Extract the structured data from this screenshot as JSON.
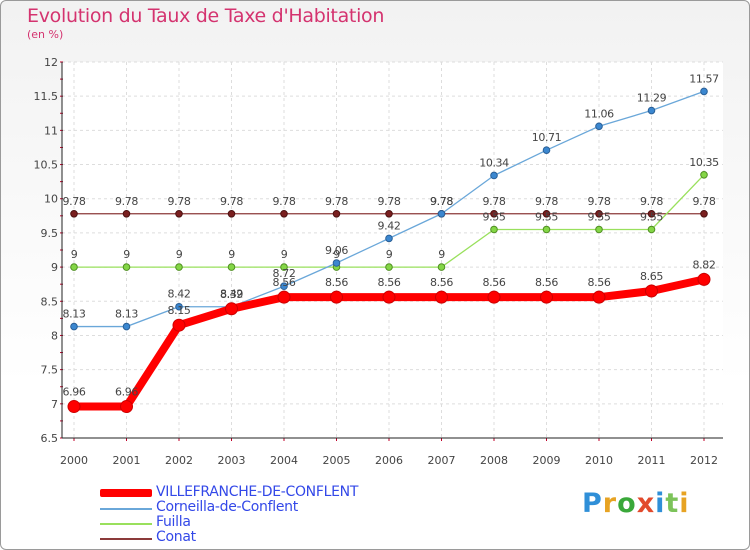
{
  "chart_data": {
    "type": "line",
    "title": "Evolution du Taux de Taxe d'Habitation",
    "subtitle": "(en %)",
    "xlabel": "",
    "ylabel": "",
    "ylim": [
      6.5,
      12
    ],
    "yticks": [
      "6.5",
      "7",
      "7.5",
      "8",
      "8.5",
      "9",
      "9.5",
      "10",
      "10.5",
      "11",
      "11.5",
      "12"
    ],
    "categories": [
      "2000",
      "2001",
      "2002",
      "2003",
      "2004",
      "2005",
      "2006",
      "2007",
      "2008",
      "2009",
      "2010",
      "2011",
      "2012"
    ],
    "series": [
      {
        "name": "VILLEFRANCHE-DE-CONFLENT",
        "color": "#ff0000",
        "values": [
          6.96,
          6.96,
          8.15,
          8.39,
          8.56,
          8.56,
          8.56,
          8.56,
          8.56,
          8.56,
          8.56,
          8.65,
          8.82
        ],
        "labels": [
          "6.96",
          "6.96",
          "8.15",
          "8.39",
          "8.56",
          "8.56",
          "8.56",
          "8.56",
          "8.56",
          "8.56",
          "8.56",
          "8.65",
          "8.82"
        ]
      },
      {
        "name": "Corneilla-de-Conflent",
        "color": "#6aa7d9",
        "values": [
          8.13,
          8.13,
          8.42,
          8.42,
          8.72,
          9.06,
          9.42,
          9.78,
          10.34,
          10.71,
          11.06,
          11.29,
          11.57
        ],
        "labels": [
          "8.13",
          "8.13",
          "8.42",
          "8.42",
          "8.72",
          "9.06",
          "9.42",
          "9.78",
          "10.34",
          "10.71",
          "11.06",
          "11.29",
          "11.57"
        ]
      },
      {
        "name": "Fuilla",
        "color": "#99e05c",
        "values": [
          9,
          9,
          9,
          9,
          9,
          9,
          9,
          9,
          9.55,
          9.55,
          9.55,
          9.55,
          10.35
        ],
        "labels": [
          "9",
          "9",
          "9",
          "9",
          "9",
          "9",
          "9",
          "9",
          "9.55",
          "9.55",
          "9.55",
          "9.55",
          "10.35"
        ]
      },
      {
        "name": "Conat",
        "color": "#8b3a3a",
        "values": [
          9.78,
          9.78,
          9.78,
          9.78,
          9.78,
          9.78,
          9.78,
          9.78,
          9.78,
          9.78,
          9.78,
          9.78,
          9.78
        ],
        "labels": [
          "9.78",
          "9.78",
          "9.78",
          "9.78",
          "9.78",
          "9.78",
          "9.78",
          "9.78",
          "9.78",
          "9.78",
          "9.78",
          "9.78",
          "9.78"
        ]
      }
    ],
    "legend_position": "bottom-left",
    "grid": true
  },
  "logo": {
    "text": [
      "P",
      "r",
      "o",
      "x",
      "i",
      "t",
      "i"
    ]
  }
}
